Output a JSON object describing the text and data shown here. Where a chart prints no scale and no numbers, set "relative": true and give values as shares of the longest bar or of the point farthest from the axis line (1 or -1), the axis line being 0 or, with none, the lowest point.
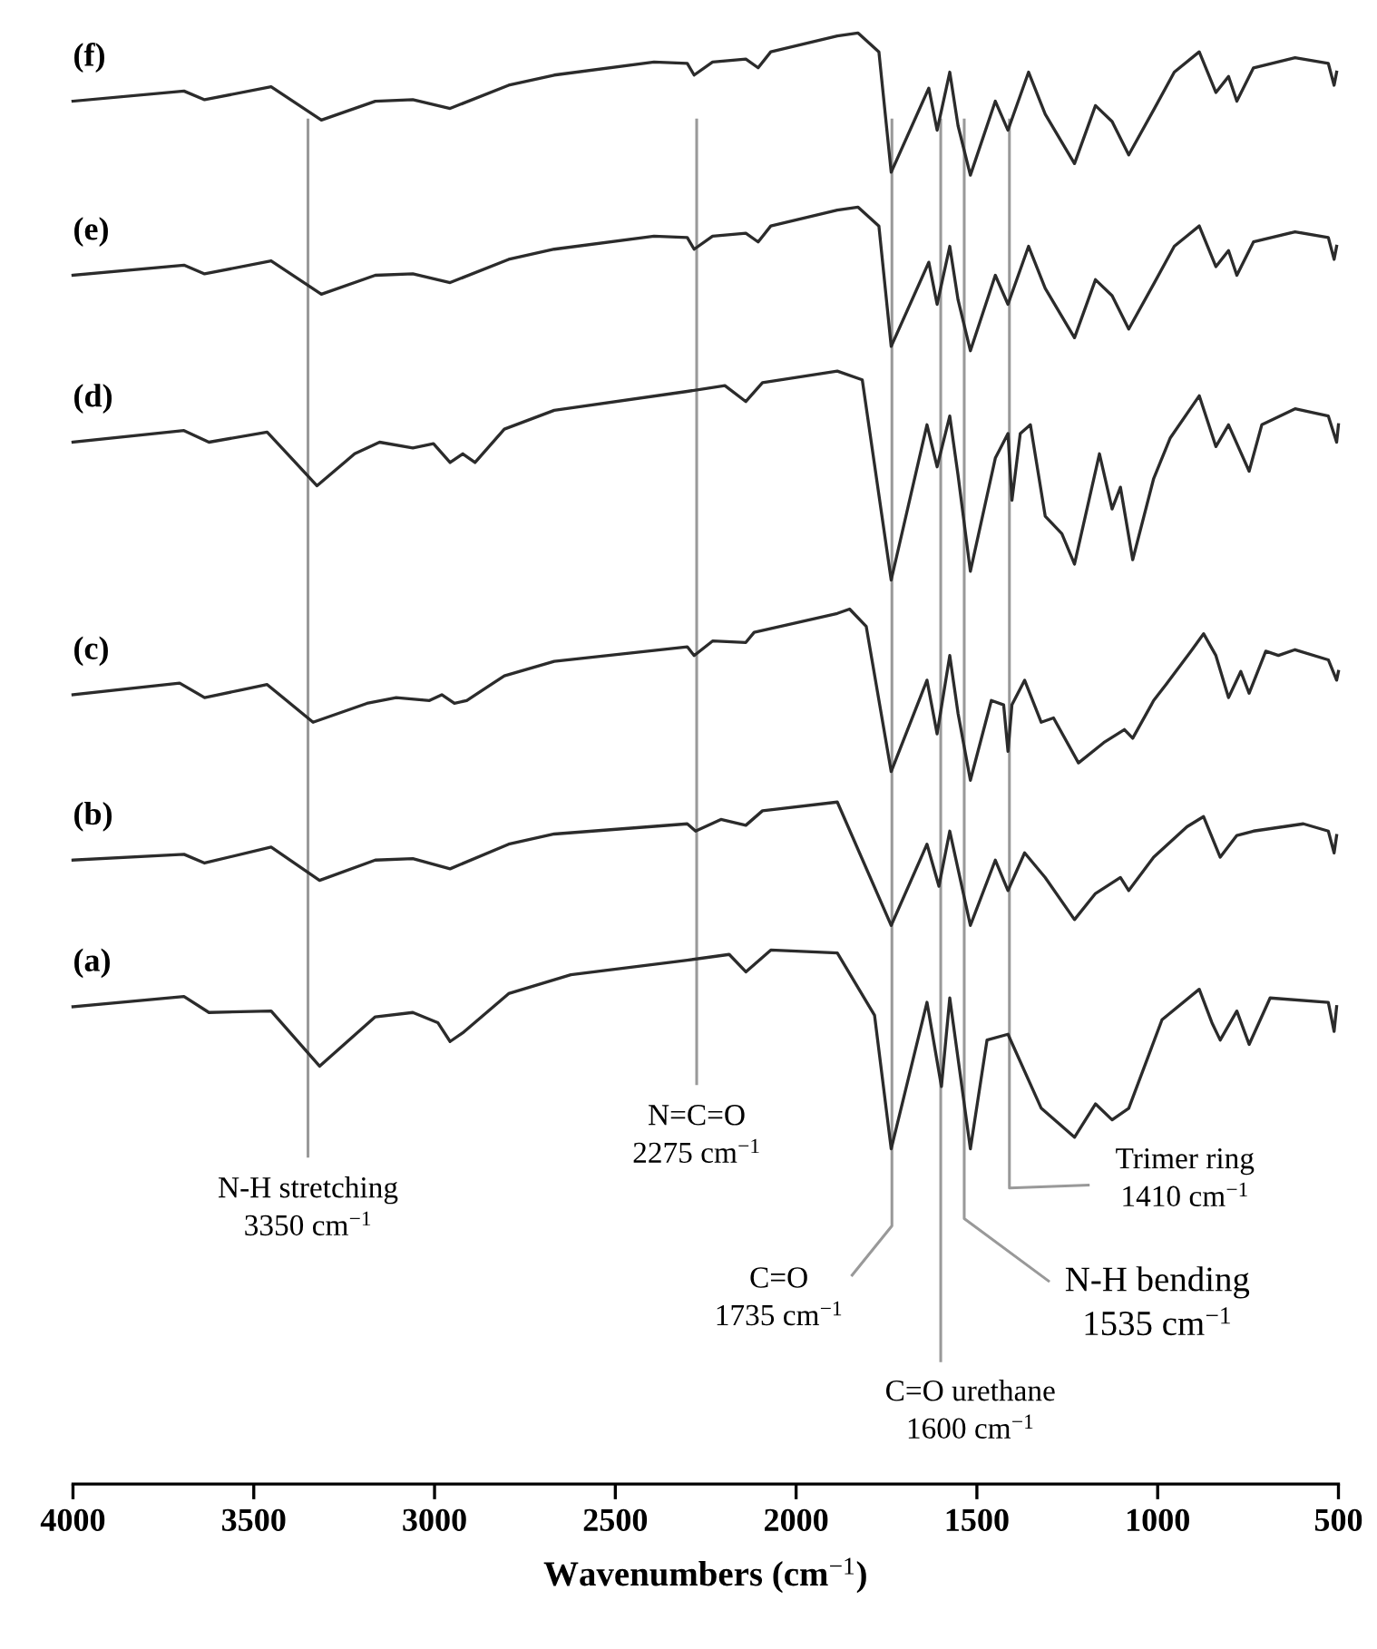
{
  "chart_data": {
    "type": "line",
    "relative": true,
    "xlabel": "Wavenumbers (cm$^{−1}$)",
    "xlim": [
      4000,
      500
    ],
    "xticks": [
      4000,
      3500,
      3000,
      2500,
      2000,
      1500,
      1000,
      500
    ],
    "tick_labels": "x",
    "series": [
      {
        "name": "(a)",
        "color": "#2b2b2b",
        "x": [
          4000,
          3693,
          3624,
          3452,
          3318,
          3164,
          3060,
          2991,
          2957,
          2922,
          2795,
          2623,
          2301,
          2185,
          2139,
          2070,
          1886,
          1783,
          1737,
          1638,
          1598,
          1575,
          1518,
          1472,
          1414,
          1322,
          1230,
          1172,
          1126,
          1080,
          988,
          885,
          850,
          827,
          781,
          747,
          689,
          528,
          512,
          505
        ],
        "values": [
          0.329,
          0.336,
          0.325,
          0.326,
          0.288,
          0.322,
          0.325,
          0.318,
          0.305,
          0.311,
          0.338,
          0.351,
          0.361,
          0.365,
          0.353,
          0.368,
          0.366,
          0.323,
          0.231,
          0.332,
          0.274,
          0.335,
          0.231,
          0.306,
          0.31,
          0.259,
          0.239,
          0.262,
          0.251,
          0.259,
          0.32,
          0.341,
          0.318,
          0.306,
          0.326,
          0.303,
          0.335,
          0.332,
          0.312,
          0.329
        ]
      },
      {
        "name": "(b)",
        "color": "#2b2b2b",
        "x": [
          4000,
          3693,
          3636,
          3452,
          3318,
          3164,
          3060,
          2957,
          2795,
          2669,
          2301,
          2278,
          2208,
          2139,
          2093,
          1886,
          1737,
          1638,
          1605,
          1575,
          1518,
          1449,
          1414,
          1368,
          1311,
          1230,
          1172,
          1103,
          1080,
          1011,
          919,
          873,
          827,
          781,
          735,
          597,
          528,
          512,
          505
        ],
        "values": [
          0.43,
          0.434,
          0.428,
          0.439,
          0.416,
          0.43,
          0.431,
          0.424,
          0.441,
          0.448,
          0.455,
          0.45,
          0.458,
          0.454,
          0.464,
          0.47,
          0.385,
          0.441,
          0.412,
          0.45,
          0.385,
          0.43,
          0.409,
          0.435,
          0.418,
          0.389,
          0.407,
          0.418,
          0.409,
          0.432,
          0.453,
          0.46,
          0.432,
          0.447,
          0.45,
          0.455,
          0.45,
          0.435,
          0.447
        ]
      },
      {
        "name": "(c)",
        "color": "#2b2b2b",
        "x": [
          4000,
          3705,
          3636,
          3463,
          3336,
          3187,
          3106,
          3014,
          2980,
          2945,
          2911,
          2807,
          2669,
          2301,
          2282,
          2231,
          2139,
          2116,
          1886,
          1852,
          1806,
          1737,
          1638,
          1610,
          1575,
          1552,
          1518,
          1460,
          1426,
          1414,
          1403,
          1368,
          1322,
          1288,
          1219,
          1149,
          1092,
          1069,
          1011,
          977,
          908,
          873,
          839,
          804,
          770,
          747,
          701,
          666,
          620,
          528,
          505,
          500
        ],
        "values": [
          0.544,
          0.552,
          0.542,
          0.551,
          0.525,
          0.538,
          0.542,
          0.54,
          0.544,
          0.538,
          0.54,
          0.557,
          0.567,
          0.577,
          0.571,
          0.581,
          0.58,
          0.587,
          0.6,
          0.603,
          0.591,
          0.491,
          0.554,
          0.517,
          0.571,
          0.531,
          0.485,
          0.54,
          0.537,
          0.505,
          0.537,
          0.554,
          0.525,
          0.528,
          0.497,
          0.511,
          0.52,
          0.514,
          0.54,
          0.551,
          0.574,
          0.586,
          0.571,
          0.542,
          0.56,
          0.545,
          0.574,
          0.571,
          0.575,
          0.568,
          0.554,
          0.56
        ]
      },
      {
        "name": "(d)",
        "color": "#2b2b2b",
        "x": [
          4000,
          3693,
          3624,
          3463,
          3325,
          3221,
          3152,
          3060,
          3003,
          2957,
          2922,
          2888,
          2807,
          2669,
          2301,
          2197,
          2139,
          2093,
          1886,
          1817,
          1737,
          1638,
          1610,
          1575,
          1552,
          1518,
          1449,
          1414,
          1403,
          1380,
          1352,
          1311,
          1265,
          1230,
          1161,
          1126,
          1103,
          1069,
          1011,
          965,
          885,
          839,
          804,
          747,
          712,
          620,
          528,
          505,
          500
        ],
        "values": [
          0.718,
          0.726,
          0.718,
          0.725,
          0.688,
          0.71,
          0.718,
          0.714,
          0.717,
          0.704,
          0.71,
          0.704,
          0.727,
          0.74,
          0.753,
          0.757,
          0.746,
          0.759,
          0.767,
          0.761,
          0.623,
          0.73,
          0.701,
          0.736,
          0.695,
          0.629,
          0.707,
          0.724,
          0.678,
          0.724,
          0.73,
          0.667,
          0.655,
          0.634,
          0.71,
          0.672,
          0.687,
          0.637,
          0.693,
          0.721,
          0.75,
          0.715,
          0.73,
          0.698,
          0.73,
          0.741,
          0.736,
          0.718,
          0.73
        ]
      },
      {
        "name": "(e)",
        "color": "#2b2b2b",
        "x": [
          4000,
          3693,
          3636,
          3452,
          3313,
          3164,
          3060,
          2957,
          2795,
          2669,
          2393,
          2301,
          2282,
          2231,
          2139,
          2105,
          2070,
          1886,
          1829,
          1771,
          1737,
          1633,
          1610,
          1575,
          1552,
          1518,
          1449,
          1414,
          1357,
          1311,
          1230,
          1172,
          1126,
          1080,
          1011,
          954,
          885,
          839,
          804,
          781,
          735,
          620,
          528,
          512,
          505
        ],
        "values": [
          0.833,
          0.84,
          0.834,
          0.843,
          0.82,
          0.833,
          0.834,
          0.828,
          0.844,
          0.851,
          0.86,
          0.859,
          0.851,
          0.86,
          0.862,
          0.856,
          0.867,
          0.878,
          0.88,
          0.867,
          0.784,
          0.842,
          0.813,
          0.853,
          0.816,
          0.781,
          0.833,
          0.813,
          0.853,
          0.824,
          0.79,
          0.83,
          0.819,
          0.796,
          0.827,
          0.853,
          0.867,
          0.839,
          0.85,
          0.833,
          0.856,
          0.863,
          0.859,
          0.844,
          0.853
        ]
      },
      {
        "name": "(f)",
        "color": "#2b2b2b",
        "x": [
          4000,
          3693,
          3636,
          3452,
          3313,
          3164,
          3060,
          2957,
          2795,
          2669,
          2393,
          2301,
          2282,
          2231,
          2139,
          2105,
          2070,
          1886,
          1829,
          1771,
          1737,
          1633,
          1610,
          1575,
          1552,
          1518,
          1449,
          1414,
          1357,
          1311,
          1230,
          1172,
          1126,
          1080,
          1011,
          954,
          885,
          839,
          804,
          781,
          735,
          620,
          528,
          512,
          505
        ],
        "values": [
          0.953,
          0.96,
          0.954,
          0.963,
          0.94,
          0.953,
          0.954,
          0.948,
          0.964,
          0.971,
          0.98,
          0.979,
          0.971,
          0.98,
          0.982,
          0.976,
          0.987,
          0.998,
          1.0,
          0.987,
          0.904,
          0.962,
          0.933,
          0.973,
          0.936,
          0.902,
          0.953,
          0.933,
          0.973,
          0.944,
          0.91,
          0.95,
          0.939,
          0.916,
          0.947,
          0.973,
          0.987,
          0.959,
          0.97,
          0.953,
          0.976,
          0.983,
          0.979,
          0.964,
          0.973
        ]
      }
    ],
    "ref_lines": [
      {
        "axis": "x",
        "value": 3350,
        "label": "N-H stretching\n3350 cm$^{−1}$",
        "color": "#999999"
      },
      {
        "axis": "x",
        "value": 2275,
        "label": "N=C=O\n2275 cm$^{−1}$",
        "color": "#999999"
      },
      {
        "axis": "x",
        "value": 1735,
        "label": "C=O\n1735 cm$^{−1}$",
        "color": "#999999"
      },
      {
        "axis": "x",
        "value": 1600,
        "label": "C=O urethane\n1600 cm$^{−1}$",
        "color": "#999999"
      },
      {
        "axis": "x",
        "value": 1535,
        "label": "N-H bending\n1535 cm$^{−1}$",
        "color": "#999999"
      },
      {
        "axis": "x",
        "value": 1410,
        "label": "Trimer ring\n1410 cm$^{−1}$",
        "color": "#999999"
      }
    ]
  }
}
